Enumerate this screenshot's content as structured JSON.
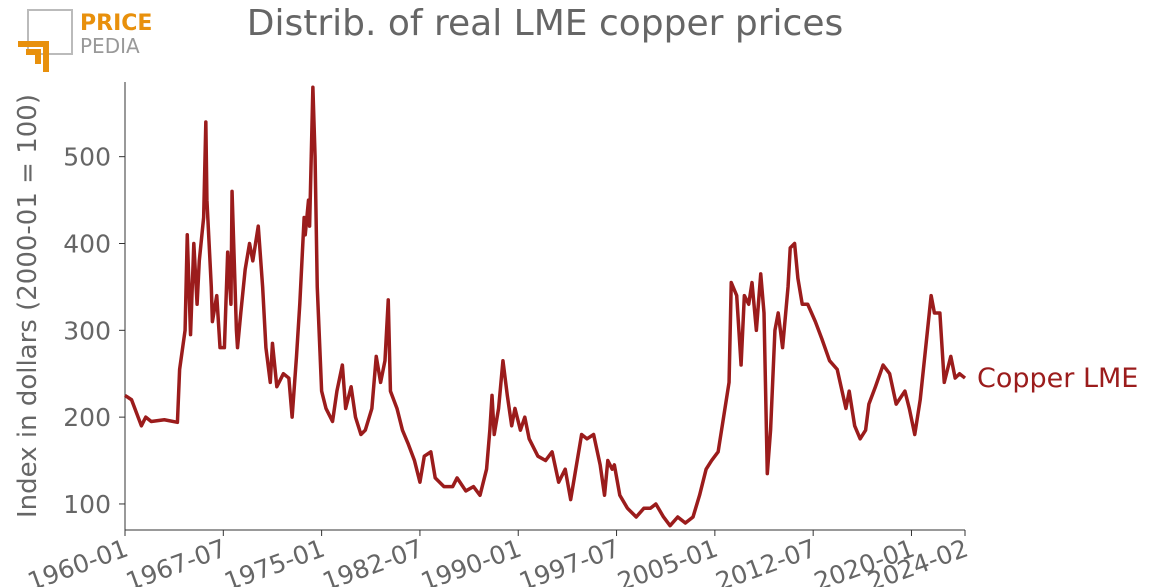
{
  "logo": {
    "top": "PRICE",
    "bottom": "PEDIA"
  },
  "chart_data": {
    "type": "line",
    "title": "Distrib. of real LME copper prices",
    "y_label": "Index in dollars (2000-01 = 100)",
    "xlim": [
      "1960-01",
      "2024-02"
    ],
    "xticks": [
      "1960-01",
      "1967-07",
      "1975-01",
      "1982-07",
      "1990-01",
      "1997-07",
      "2005-01",
      "2012-07",
      "2020-01",
      "2024-02"
    ],
    "ylim": [
      70,
      586
    ],
    "yticks": [
      100,
      200,
      300,
      400,
      500
    ],
    "x": [
      "1960-01",
      "1960-07",
      "1961-04",
      "1961-08",
      "1962-01",
      "1963-01",
      "1964-01",
      "1964-03",
      "1964-08",
      "1964-10",
      "1965-01",
      "1965-04",
      "1965-07",
      "1965-09",
      "1966-01",
      "1966-03",
      "1966-04",
      "1966-08",
      "1966-09",
      "1967-01",
      "1967-04",
      "1967-08",
      "1967-11",
      "1968-02",
      "1968-03",
      "1968-07",
      "1968-08",
      "1968-11",
      "1969-03",
      "1969-07",
      "1969-10",
      "1970-03",
      "1970-07",
      "1970-10",
      "1971-02",
      "1971-04",
      "1971-08",
      "1972-02",
      "1972-07",
      "1972-10",
      "1973-02",
      "1973-05",
      "1973-09",
      "1973-10",
      "1974-01",
      "1974-02",
      "1974-05",
      "1974-07",
      "1974-09",
      "1975-01",
      "1975-05",
      "1975-11",
      "1976-03",
      "1976-08",
      "1976-11",
      "1977-04",
      "1977-08",
      "1978-01",
      "1978-05",
      "1978-11",
      "1979-03",
      "1979-07",
      "1979-11",
      "1980-02",
      "1980-04",
      "1980-10",
      "1981-03",
      "1981-08",
      "1982-02",
      "1982-07",
      "1982-11",
      "1983-05",
      "1983-09",
      "1984-05",
      "1985-01",
      "1985-05",
      "1986-01",
      "1986-08",
      "1987-02",
      "1987-08",
      "1987-11",
      "1988-01",
      "1988-03",
      "1988-07",
      "1988-11",
      "1989-03",
      "1989-07",
      "1989-10",
      "1990-03",
      "1990-07",
      "1990-11",
      "1991-07",
      "1992-02",
      "1992-08",
      "1993-02",
      "1993-08",
      "1994-01",
      "1994-05",
      "1994-11",
      "1995-04",
      "1995-10",
      "1996-04",
      "1996-08",
      "1996-11",
      "1997-03",
      "1997-05",
      "1997-10",
      "1998-05",
      "1999-01",
      "1999-08",
      "2000-02",
      "2000-07",
      "2001-02",
      "2001-08",
      "2002-03",
      "2002-10",
      "2003-05",
      "2003-11",
      "2004-05",
      "2004-10",
      "2005-04",
      "2005-09",
      "2006-02",
      "2006-04",
      "2006-09",
      "2007-01",
      "2007-04",
      "2007-08",
      "2007-11",
      "2008-03",
      "2008-07",
      "2008-10",
      "2009-01",
      "2009-04",
      "2009-08",
      "2009-11",
      "2010-03",
      "2010-08",
      "2010-10",
      "2011-02",
      "2011-05",
      "2011-09",
      "2012-02",
      "2012-09",
      "2013-03",
      "2013-10",
      "2014-05",
      "2015-01",
      "2015-04",
      "2015-09",
      "2016-02",
      "2016-07",
      "2016-10",
      "2017-04",
      "2017-11",
      "2018-05",
      "2018-11",
      "2019-07",
      "2019-11",
      "2020-04",
      "2020-09",
      "2021-02",
      "2021-07",
      "2021-10",
      "2022-03",
      "2022-07",
      "2023-01",
      "2023-05",
      "2023-09",
      "2024-02"
    ],
    "series": [
      {
        "name": "Copper LME",
        "color": "#9b1c1c",
        "values": [
          225,
          220,
          190,
          200,
          195,
          197,
          194,
          255,
          300,
          410,
          295,
          400,
          330,
          380,
          430,
          540,
          450,
          350,
          310,
          340,
          280,
          280,
          390,
          330,
          460,
          300,
          280,
          320,
          370,
          400,
          380,
          420,
          350,
          280,
          240,
          285,
          235,
          250,
          245,
          200,
          270,
          330,
          430,
          410,
          450,
          420,
          580,
          500,
          350,
          230,
          210,
          195,
          230,
          260,
          210,
          235,
          200,
          180,
          185,
          210,
          270,
          240,
          265,
          335,
          230,
          210,
          185,
          170,
          150,
          125,
          155,
          160,
          130,
          120,
          120,
          130,
          115,
          120,
          110,
          140,
          185,
          225,
          180,
          210,
          265,
          225,
          190,
          210,
          185,
          200,
          175,
          155,
          150,
          160,
          125,
          140,
          105,
          135,
          180,
          175,
          180,
          145,
          110,
          150,
          140,
          145,
          110,
          95,
          85,
          95,
          95,
          100,
          85,
          75,
          85,
          78,
          85,
          110,
          140,
          150,
          160,
          200,
          240,
          355,
          340,
          260,
          340,
          330,
          355,
          300,
          365,
          320,
          135,
          185,
          300,
          320,
          280,
          350,
          395,
          400,
          360,
          330,
          330,
          310,
          290,
          265,
          255,
          210,
          230,
          190,
          175,
          185,
          215,
          235,
          260,
          250,
          215,
          230,
          210,
          180,
          220,
          280,
          340,
          320,
          320,
          240,
          270,
          245,
          250,
          245
        ]
      }
    ]
  }
}
